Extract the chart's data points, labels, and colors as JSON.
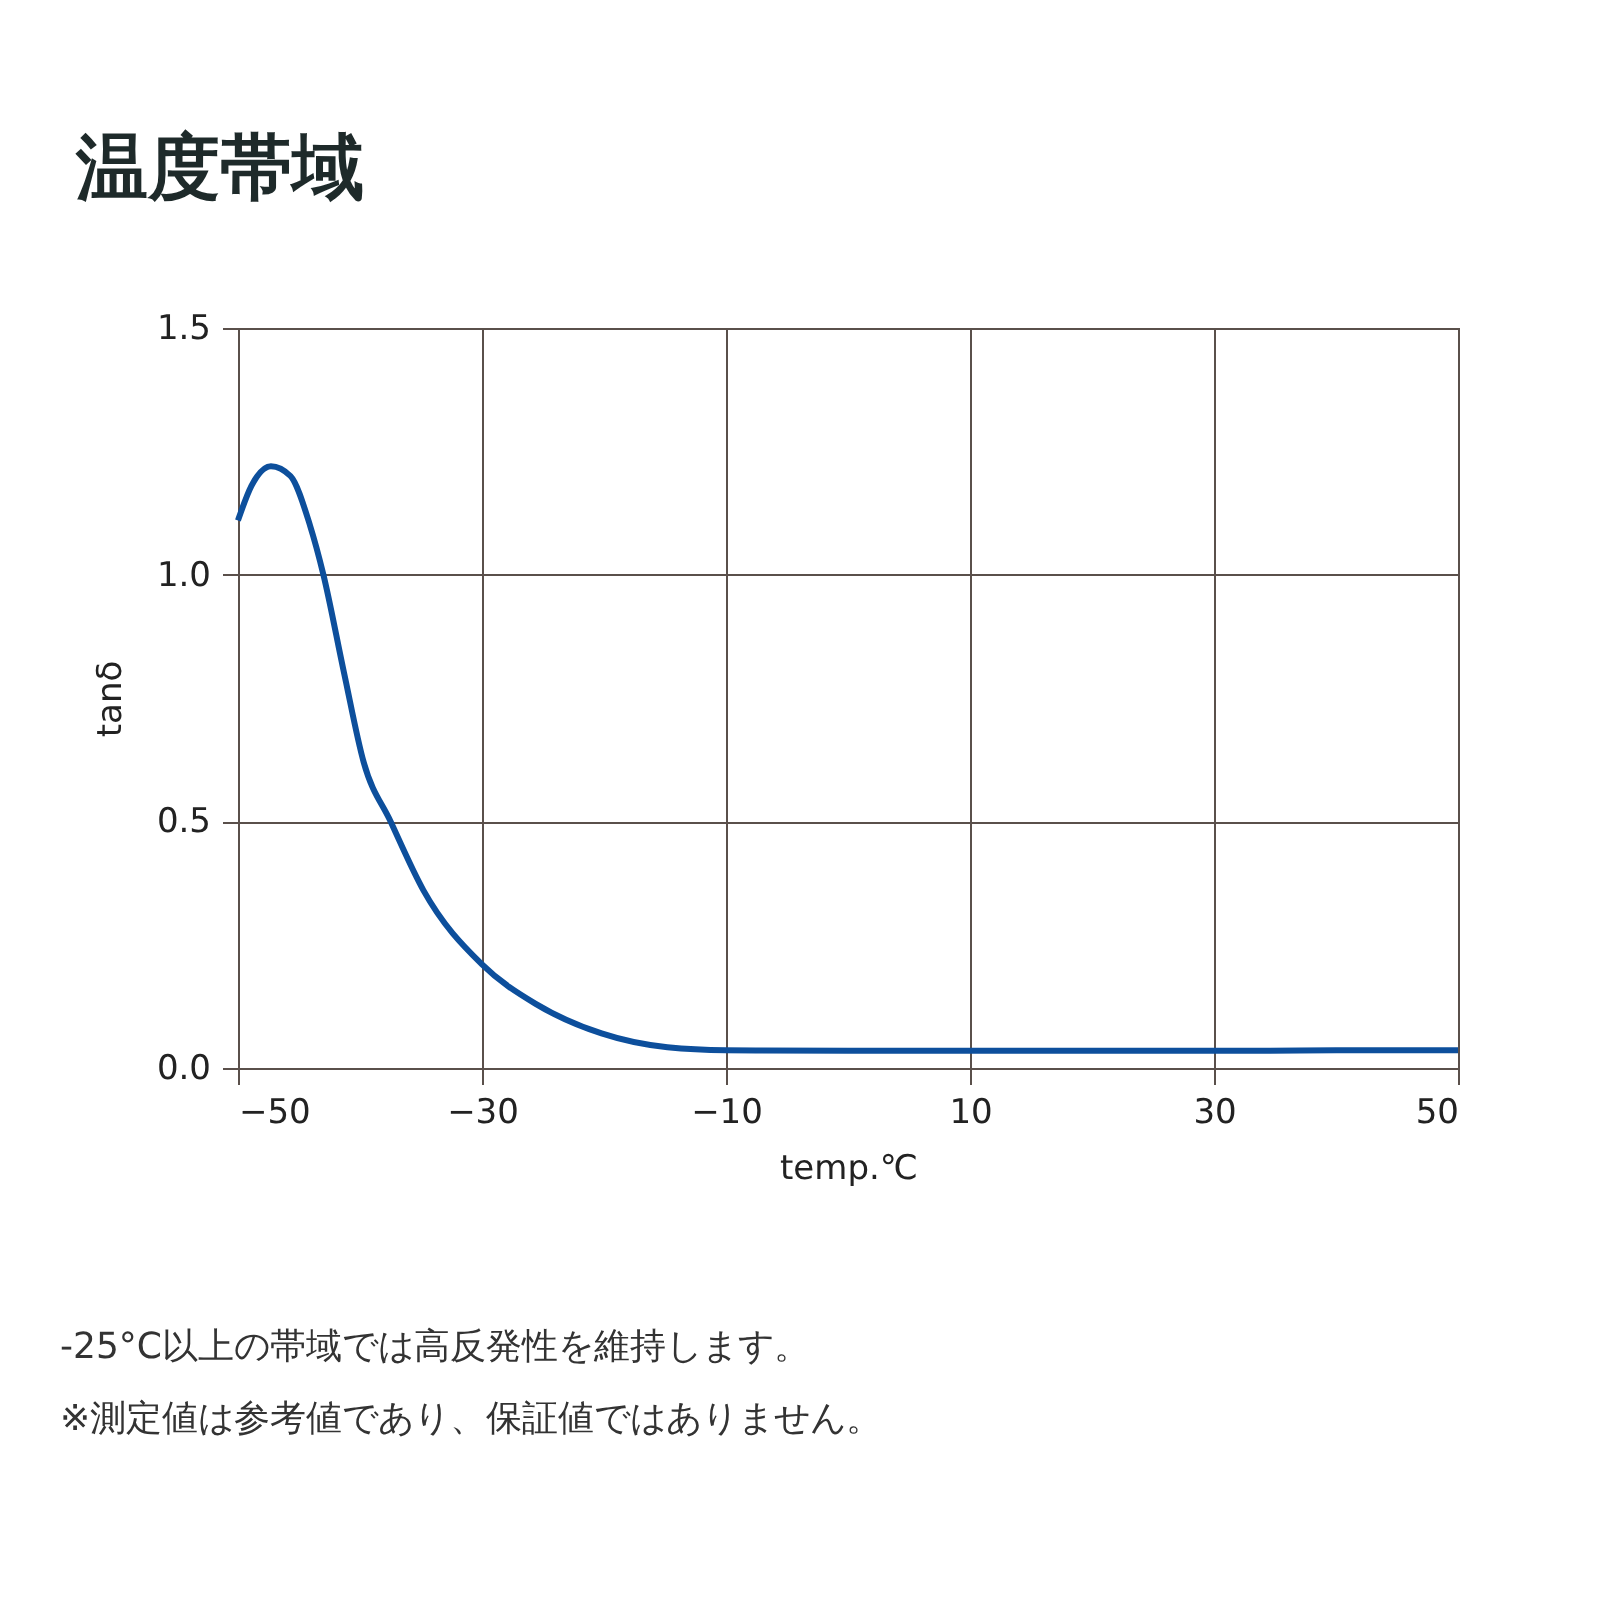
{
  "chart_data": {
    "type": "line",
    "title": "温度帯域",
    "xlabel": "temp.℃",
    "ylabel": "tanδ",
    "x": [
      -50,
      -48.9,
      -47.3,
      -45.7,
      -44.1,
      -43,
      -41.3,
      -39.7,
      -37.5,
      -34.8,
      -30,
      -25.6,
      -20.2,
      -14.8,
      -10,
      0,
      10,
      20,
      30,
      34,
      40,
      50
    ],
    "series": [
      {
        "color": "#0d4f9c",
        "values": [
          1.11,
          1.18,
          1.22,
          1.2,
          1.1,
          1.0,
          0.8,
          0.62,
          0.5,
          0.36,
          0.21,
          0.13,
          0.07,
          0.042,
          0.036,
          0.035,
          0.035,
          0.035,
          0.035,
          0.035,
          0.036,
          0.036
        ]
      }
    ],
    "xlim": [
      -50,
      50
    ],
    "xticks": [
      -50,
      -30,
      -10,
      10,
      30,
      50
    ],
    "ylim": [
      0,
      1.5
    ],
    "yticks": [
      {
        "value": 0,
        "label": "0.0"
      },
      0.5,
      {
        "value": 1,
        "label": "1.0"
      },
      1.5
    ],
    "grid": true,
    "marker": "none",
    "line_style": "solid",
    "annotations": [
      "-25°C以上の帯域では高反発性を維持します。",
      "※測定値は参考値であり、保証値ではありません。"
    ]
  }
}
